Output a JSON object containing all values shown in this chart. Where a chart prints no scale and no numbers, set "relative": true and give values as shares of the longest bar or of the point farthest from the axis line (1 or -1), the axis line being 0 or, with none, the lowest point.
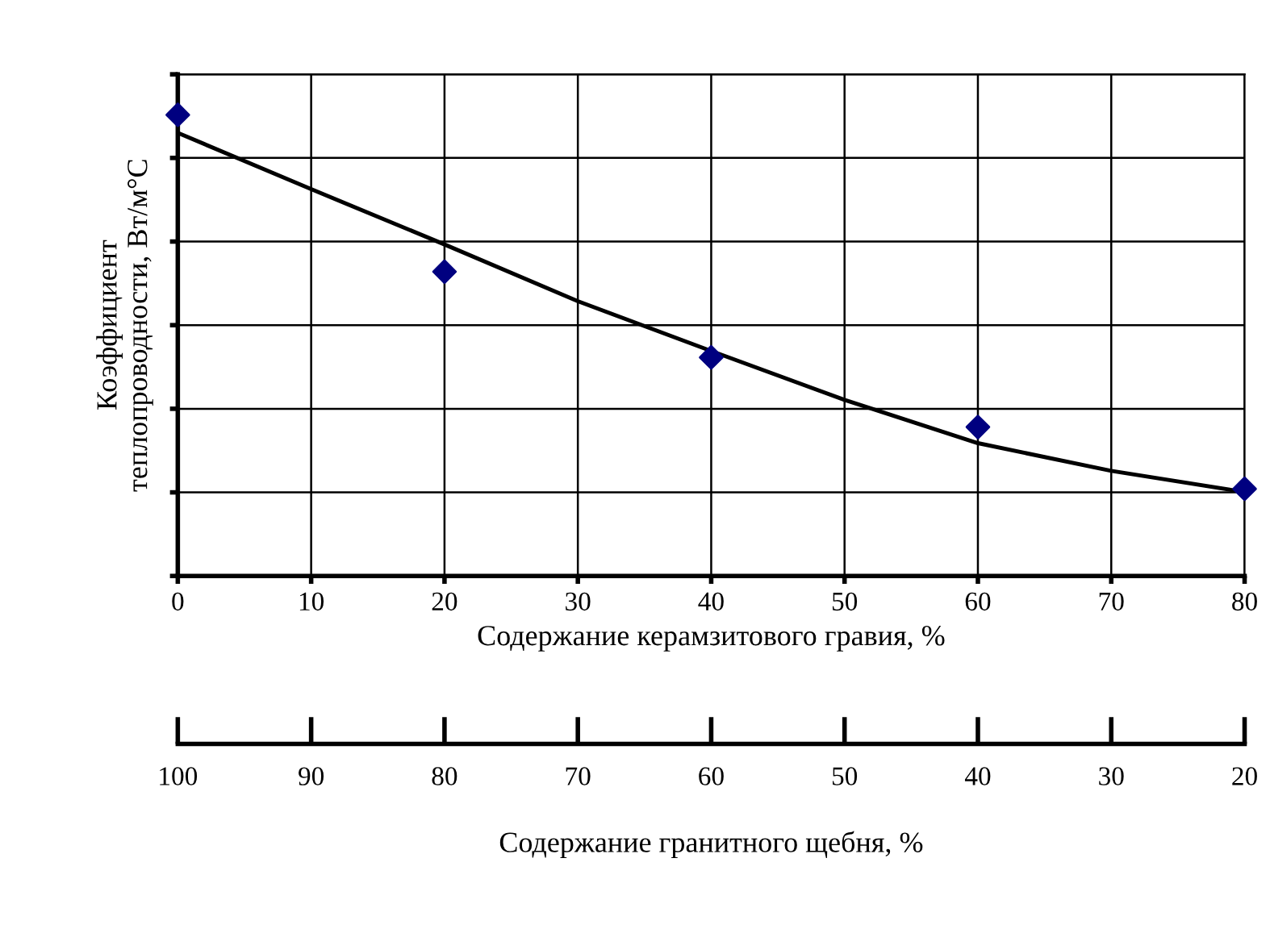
{
  "chart_data": {
    "type": "scatter",
    "relative": true,
    "xlabel": "Содержание керамзитового гравия, %",
    "ylabel": "Коэффициент\nтеплопроводности, Вт/м°С",
    "x2label": "Содержание гранитного щебня, %",
    "xlim": [
      0,
      80
    ],
    "xticks": [
      0,
      10,
      20,
      30,
      40,
      50,
      60,
      70,
      80
    ],
    "x2lim": [
      100,
      20
    ],
    "x2ticks": [
      100,
      90,
      80,
      70,
      60,
      50,
      40,
      30,
      20
    ],
    "grid": true,
    "tick_labels": "x",
    "series": [
      {
        "color": "#000080",
        "marker": "diamond",
        "x": [
          0,
          20,
          40,
          60,
          80
        ],
        "values": [
          1,
          0.66,
          0.474,
          0.323,
          0.189
        ]
      },
      {
        "type": "line",
        "color": "#000000",
        "marker": "none",
        "line_style": "solid",
        "x": [
          0,
          10,
          20,
          30,
          40,
          50,
          60,
          70,
          80
        ],
        "values": [
          0.961,
          0.839,
          0.719,
          0.596,
          0.488,
          0.382,
          0.288,
          0.228,
          0.182
        ]
      }
    ]
  }
}
